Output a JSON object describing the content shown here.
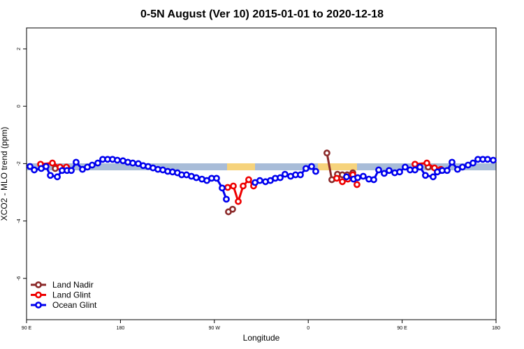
{
  "chart_data": {
    "type": "line",
    "title": "0-5N August (Ver 10)   2015-01-01 to 2020-12-18",
    "x_label": "Longitude",
    "y_label": "XCO2 - MLO trend (ppm)",
    "xlim": [
      90,
      540
    ],
    "ylim": [
      -7.44,
      2.73
    ],
    "xticks": [
      {
        "value": 90,
        "label": "90 E"
      },
      180,
      {
        "value": 270,
        "label": "90 W"
      },
      {
        "value": 360,
        "label": "0"
      },
      {
        "value": 450,
        "label": "90 E"
      },
      {
        "value": 540,
        "label": "180"
      }
    ],
    "yticks": [
      2,
      0,
      -2,
      -4,
      -6
    ],
    "legend": "bottom-left",
    "series": [
      {
        "name": "Land Nadir",
        "color": "#8b2a2a",
        "x": [
          117.5,
          128.8,
          null,
          283.5,
          287.5,
          null,
          377.9,
          382.6,
          388.0,
          392.7,
          397.3,
          402.7,
          null,
          475.0,
          486.4
        ],
        "values": [
          -2.17,
          -2.15,
          null,
          -3.68,
          -3.59,
          null,
          -1.63,
          -2.56,
          -2.37,
          -2.39,
          -2.39,
          -2.32,
          null,
          -2.12,
          -2.24
        ]
      },
      {
        "name": "Land Glint",
        "color": "#ee0000",
        "x": [
          103.4,
          114.8,
          122.1,
          128.2,
          null,
          282.8,
          288.2,
          292.9,
          297.6,
          302.9,
          307.6,
          null,
          387.3,
          392.7,
          398.0,
          402.7,
          406.7,
          null,
          462.3,
          473.7,
          481.0,
          487.1
        ],
        "values": [
          -2.02,
          -1.98,
          -2.12,
          -2.12,
          null,
          -2.83,
          -2.78,
          -3.32,
          -2.78,
          -2.56,
          -2.78,
          null,
          -2.51,
          -2.63,
          -2.54,
          -2.39,
          -2.73,
          null,
          -2.02,
          -1.98,
          -2.15,
          -2.2
        ]
      },
      {
        "name": "Ocean Glint",
        "color": "#0000ee",
        "x": [
          93.3,
          97.4,
          104.1,
          108.7,
          112.8,
          119.5,
          124.1,
          128.8,
          132.9,
          137.5,
          143.6,
          148.3,
          152.9,
          158.3,
          163.0,
          167.7,
          172.4,
          177.0,
          182.4,
          187.1,
          191.8,
          197.1,
          201.8,
          206.5,
          211.2,
          215.9,
          220.6,
          225.3,
          229.9,
          234.6,
          238.7,
          243.3,
          248.0,
          252.7,
          258.1,
          262.8,
          267.4,
          272.1,
          277.5,
          281.5,
          null,
          309.0,
          313.6,
          319.0,
          323.7,
          328.4,
          333.1,
          337.7,
          343.1,
          347.8,
          352.5,
          357.8,
          363.2,
          367.2,
          null,
          396.7,
          403.4,
          407.4,
          412.7,
          418.1,
          422.8,
          427.5,
          432.8,
          437.5,
          442.9,
          447.6,
          452.9,
          457.6,
          462.3,
          467.0,
          472.3,
          479.7,
          483.7,
          488.4,
          493.1,
          497.8,
          503.1,
          507.8,
          513.2,
          517.9,
          522.6,
          527.3,
          531.9,
          537.3
        ],
        "values": [
          -2.1,
          -2.22,
          -2.17,
          -2.1,
          -2.41,
          -2.46,
          -2.24,
          -2.24,
          -2.24,
          -1.95,
          -2.2,
          -2.12,
          -2.05,
          -1.98,
          -1.85,
          -1.85,
          -1.85,
          -1.88,
          -1.9,
          -1.95,
          -1.98,
          -2.0,
          -2.07,
          -2.1,
          -2.15,
          -2.2,
          -2.22,
          -2.27,
          -2.29,
          -2.32,
          -2.39,
          -2.39,
          -2.44,
          -2.49,
          -2.54,
          -2.59,
          -2.51,
          -2.51,
          -2.85,
          -3.24,
          null,
          -2.66,
          -2.59,
          -2.63,
          -2.59,
          -2.51,
          -2.49,
          -2.37,
          -2.44,
          -2.39,
          -2.39,
          -2.17,
          -2.1,
          -2.27,
          null,
          -2.46,
          -2.54,
          -2.49,
          -2.44,
          -2.54,
          -2.56,
          -2.22,
          -2.34,
          -2.24,
          -2.32,
          -2.29,
          -2.12,
          -2.22,
          -2.22,
          -2.12,
          -2.41,
          -2.46,
          -2.29,
          -2.24,
          -2.24,
          -1.95,
          -2.2,
          -2.12,
          -2.05,
          -1.98,
          -1.85,
          -1.85,
          -1.85,
          -1.88
        ]
      }
    ]
  }
}
